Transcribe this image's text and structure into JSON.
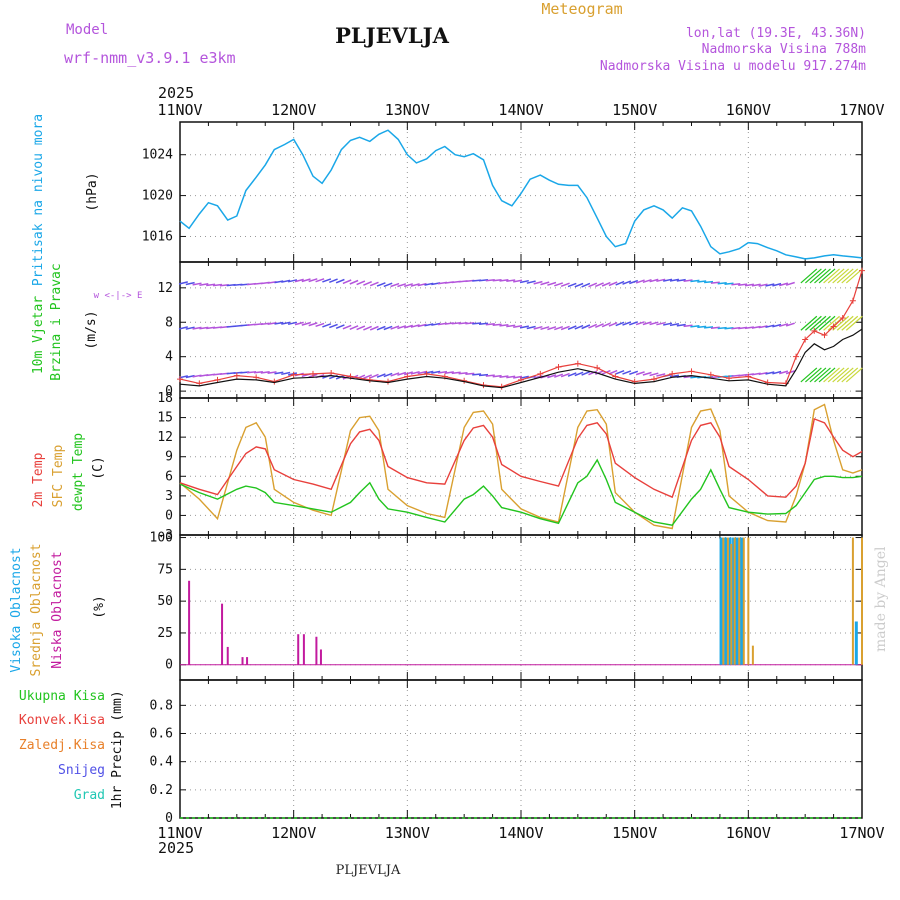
{
  "header": {
    "model_label": "Model",
    "model_name": "wrf-nmm_v3.9.1 e3km",
    "station": "PLJEVLJA",
    "meteogram": "Meteogram",
    "lonlat": "lon,lat (19.3E, 43.36N)",
    "altitude": "Nadmorska Visina 788m",
    "model_altitude": "Nadmorska Visina u modelu 917.274m",
    "year": "2025",
    "footer_station": "PLJEVLJA",
    "credit": "made by Angel"
  },
  "colors": {
    "pressure": "#1aa7e8",
    "temp2m": "#e8403c",
    "sfc": "#d9a030",
    "dewpt": "#22c41e",
    "high_cloud": "#1aa7e8",
    "mid_cloud": "#d9a030",
    "low_cloud": "#c21a9e",
    "wind_green": "#22c41e",
    "purple": "#b455dc",
    "snow": "#5050e6",
    "ice": "#e8802a",
    "hail": "#20c8b4",
    "gray": "#999999",
    "credit": "#cccccc"
  },
  "chart_data": {
    "x_ticks": [
      "11NOV",
      "12NOV",
      "13NOV",
      "14NOV",
      "15NOV",
      "16NOV",
      "17NOV"
    ],
    "x_range_days": [
      0,
      6
    ],
    "pressure": {
      "ylabel": "Pritisak na nivou mora",
      "unit": "(hPa)",
      "ylim": [
        1013.5,
        1027.2
      ],
      "ticks": [
        1016,
        1020,
        1024
      ],
      "x": [
        0,
        0.08,
        0.17,
        0.25,
        0.33,
        0.42,
        0.5,
        0.58,
        0.67,
        0.75,
        0.83,
        0.92,
        1.0,
        1.08,
        1.17,
        1.25,
        1.33,
        1.42,
        1.5,
        1.58,
        1.67,
        1.75,
        1.83,
        1.92,
        2.0,
        2.08,
        2.17,
        2.25,
        2.33,
        2.42,
        2.5,
        2.58,
        2.67,
        2.75,
        2.83,
        2.92,
        3.0,
        3.08,
        3.17,
        3.25,
        3.33,
        3.42,
        3.5,
        3.58,
        3.67,
        3.75,
        3.83,
        3.92,
        4.0,
        4.08,
        4.17,
        4.25,
        4.33,
        4.42,
        4.5,
        4.58,
        4.67,
        4.75,
        4.83,
        4.92,
        5.0,
        5.08,
        5.17,
        5.25,
        5.33,
        5.42,
        5.5,
        5.58,
        5.67,
        5.75,
        5.83,
        5.92,
        6.0
      ],
      "y": [
        1017.5,
        1016.8,
        1018.2,
        1019.3,
        1019.0,
        1017.6,
        1018.0,
        1020.5,
        1021.8,
        1023.0,
        1024.5,
        1025.0,
        1025.5,
        1024.0,
        1021.9,
        1021.2,
        1022.5,
        1024.5,
        1025.4,
        1025.7,
        1025.3,
        1026.0,
        1026.4,
        1025.5,
        1024.0,
        1023.2,
        1023.6,
        1024.4,
        1024.8,
        1024.0,
        1023.8,
        1024.1,
        1023.5,
        1021.0,
        1019.5,
        1019.0,
        1020.2,
        1021.6,
        1022.0,
        1021.5,
        1021.1,
        1021.0,
        1021.0,
        1019.8,
        1017.8,
        1016.0,
        1015.0,
        1015.3,
        1017.5,
        1018.6,
        1019.0,
        1018.6,
        1017.8,
        1018.8,
        1018.5,
        1017.0,
        1015.0,
        1014.3,
        1014.5,
        1014.8,
        1015.4,
        1015.3,
        1014.9,
        1014.6,
        1014.2,
        1014.0,
        1013.8,
        1013.9,
        1014.1,
        1014.2,
        1014.1,
        1014.0,
        1013.9
      ]
    },
    "wind": {
      "ylabel": "10m Vjetar",
      "ylabel2": "Brzina i Pravac",
      "unit": "(m/s)",
      "compass": "w <-|-> E",
      "ylim": [
        -0.8,
        15
      ],
      "ticks": [
        0,
        4,
        8,
        12
      ],
      "speed_x": [
        0,
        0.17,
        0.33,
        0.5,
        0.67,
        0.83,
        1.0,
        1.17,
        1.33,
        1.5,
        1.67,
        1.83,
        2.0,
        2.17,
        2.33,
        2.5,
        2.67,
        2.83,
        3.0,
        3.17,
        3.33,
        3.5,
        3.67,
        3.83,
        4.0,
        4.17,
        4.33,
        4.5,
        4.67,
        4.83,
        5.0,
        5.17,
        5.33,
        5.42,
        5.5,
        5.58,
        5.67,
        5.75,
        5.83,
        5.92,
        6.0
      ],
      "speed": [
        0.8,
        0.6,
        1.0,
        1.4,
        1.3,
        1.0,
        1.5,
        1.6,
        1.8,
        1.5,
        1.2,
        1.0,
        1.4,
        1.7,
        1.5,
        1.1,
        0.6,
        0.4,
        1.0,
        1.6,
        2.2,
        2.6,
        2.1,
        1.4,
        0.9,
        1.1,
        1.6,
        1.8,
        1.5,
        1.2,
        1.3,
        0.8,
        0.6,
        2.5,
        4.5,
        5.5,
        4.8,
        5.2,
        6.0,
        6.5,
        7.2
      ],
      "gust_x": [
        0,
        0.17,
        0.33,
        0.5,
        0.67,
        0.83,
        1.0,
        1.17,
        1.33,
        1.5,
        1.67,
        1.83,
        2.0,
        2.17,
        2.33,
        2.5,
        2.67,
        2.83,
        3.0,
        3.17,
        3.33,
        3.5,
        3.67,
        3.83,
        4.0,
        4.17,
        4.33,
        4.5,
        4.67,
        4.83,
        5.0,
        5.17,
        5.33,
        5.42,
        5.5,
        5.58,
        5.67,
        5.75,
        5.83,
        5.92,
        6.0
      ],
      "gust": [
        1.4,
        0.9,
        1.3,
        1.8,
        1.6,
        1.1,
        1.9,
        2.0,
        2.1,
        1.7,
        1.3,
        1.1,
        1.7,
        2.0,
        1.7,
        1.2,
        0.7,
        0.5,
        1.3,
        2.0,
        2.8,
        3.2,
        2.7,
        1.7,
        1.1,
        1.4,
        2.0,
        2.3,
        1.9,
        1.5,
        1.7,
        1.0,
        0.9,
        4.0,
        6.0,
        7.0,
        6.5,
        7.5,
        8.5,
        10.5,
        14.0
      ]
    },
    "temperature": {
      "ylabel": "2m Temp",
      "ylabel2": "SFC Temp",
      "ylabel3": "dewpt Temp",
      "unit": "(C)",
      "ylim": [
        -3,
        18
      ],
      "ticks": [
        -3,
        0,
        3,
        6,
        9,
        12,
        15,
        18
      ],
      "x": [
        0,
        0.17,
        0.33,
        0.5,
        0.58,
        0.67,
        0.75,
        0.83,
        1.0,
        1.17,
        1.33,
        1.5,
        1.58,
        1.67,
        1.75,
        1.83,
        2.0,
        2.17,
        2.33,
        2.5,
        2.58,
        2.67,
        2.75,
        2.83,
        3.0,
        3.17,
        3.33,
        3.5,
        3.58,
        3.67,
        3.75,
        3.83,
        4.0,
        4.17,
        4.33,
        4.5,
        4.58,
        4.67,
        4.75,
        4.83,
        5.0,
        5.17,
        5.33,
        5.42,
        5.5,
        5.58,
        5.67,
        5.75,
        5.83,
        5.92,
        6.0
      ],
      "t2m": [
        5.0,
        4.0,
        3.2,
        7.5,
        9.5,
        10.5,
        10.2,
        7.0,
        5.5,
        4.8,
        4.0,
        11.0,
        12.8,
        13.2,
        11.5,
        7.5,
        5.8,
        5.0,
        4.8,
        11.5,
        13.4,
        13.8,
        12.0,
        7.8,
        6.0,
        5.2,
        4.5,
        11.8,
        13.8,
        14.2,
        12.5,
        8.0,
        5.8,
        4.0,
        2.8,
        11.5,
        13.8,
        14.2,
        12.0,
        7.5,
        5.5,
        3.0,
        2.8,
        4.5,
        8.0,
        14.8,
        14.2,
        12.0,
        10.0,
        9.0,
        9.8
      ],
      "sfc": [
        5.0,
        2.5,
        -0.5,
        10.0,
        13.5,
        14.2,
        12.0,
        4.0,
        2.0,
        0.8,
        0.0,
        13.0,
        15.0,
        15.2,
        13.0,
        4.0,
        1.5,
        0.3,
        -0.3,
        13.5,
        15.8,
        16.0,
        14.0,
        4.0,
        1.0,
        -0.3,
        -1.0,
        13.5,
        16.0,
        16.2,
        14.0,
        3.5,
        0.5,
        -1.5,
        -2.0,
        13.5,
        16.0,
        16.3,
        13.0,
        3.0,
        0.5,
        -0.8,
        -1.0,
        3.0,
        8.0,
        16.2,
        17.0,
        11.5,
        7.0,
        6.5,
        7.0
      ],
      "dewpt": [
        4.8,
        3.5,
        2.5,
        4.0,
        4.5,
        4.2,
        3.5,
        2.0,
        1.5,
        1.0,
        0.5,
        2.0,
        3.5,
        5.0,
        2.5,
        1.0,
        0.5,
        -0.3,
        -1.0,
        2.5,
        3.2,
        4.5,
        3.0,
        1.2,
        0.5,
        -0.5,
        -1.2,
        5.0,
        6.0,
        8.5,
        5.5,
        2.0,
        0.5,
        -1.0,
        -1.5,
        2.5,
        4.0,
        7.0,
        4.0,
        1.2,
        0.5,
        0.2,
        0.3,
        1.5,
        3.5,
        5.5,
        6.0,
        6.0,
        5.8,
        5.8,
        6.0
      ]
    },
    "cloud": {
      "ylabel": "Visoka Oblacnost",
      "ylabel2": "Srednja Oblacnost",
      "ylabel3": "Niska Oblacnost",
      "unit": "(%)",
      "ylim": [
        0,
        100
      ],
      "ticks": [
        0,
        25,
        50,
        75,
        100
      ],
      "low": [
        [
          0.08,
          66
        ],
        [
          0.37,
          48
        ],
        [
          0.42,
          14
        ],
        [
          0.55,
          6
        ],
        [
          0.59,
          6
        ],
        [
          1.04,
          24
        ],
        [
          1.09,
          24
        ],
        [
          1.2,
          22
        ],
        [
          1.24,
          12
        ]
      ],
      "mid": [
        [
          4.78,
          100
        ],
        [
          4.82,
          100
        ],
        [
          4.85,
          95
        ],
        [
          4.88,
          100
        ],
        [
          4.92,
          100
        ],
        [
          4.96,
          100
        ],
        [
          5.0,
          100
        ],
        [
          5.04,
          15
        ],
        [
          5.92,
          100
        ],
        [
          6.0,
          100
        ]
      ],
      "high": [
        [
          4.76,
          100
        ],
        [
          4.8,
          100
        ],
        [
          4.84,
          100
        ],
        [
          4.87,
          100
        ],
        [
          4.9,
          100
        ],
        [
          4.94,
          100
        ],
        [
          5.95,
          34
        ]
      ]
    },
    "precip": {
      "ylabel": "1hr Precip",
      "unit": "(mm)",
      "ylim": [
        0,
        0.98
      ],
      "ticks": [
        0,
        0.2,
        0.4,
        0.6,
        0.8
      ],
      "tick_labels": [
        "0",
        "0.2",
        "0.4",
        "0.6",
        "0.8"
      ],
      "legend": [
        "Ukupna Kisa",
        "Konvek.Kisa",
        "Zaledj.Kisa",
        "Snijeg",
        "Grad"
      ],
      "values": []
    }
  }
}
